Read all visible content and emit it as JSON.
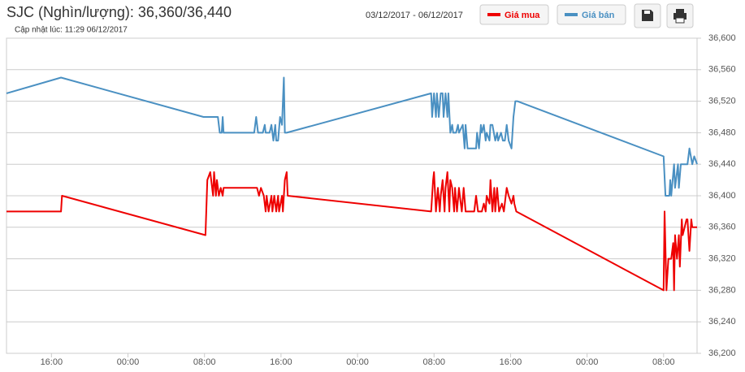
{
  "chart_data": {
    "type": "line",
    "title": "SJC (Nghìn/lượng): 36,360/36,440",
    "subtitle": "Cập nhật lúc: 11:29 06/12/2017",
    "date_range": "03/12/2017 - 06/12/2017",
    "grid": true,
    "xlim": [
      11.3,
      83.5
    ],
    "xticks": [
      {
        "value": 16,
        "label": "16:00"
      },
      {
        "value": 24,
        "label": "00:00"
      },
      {
        "value": 32,
        "label": "08:00"
      },
      {
        "value": 40,
        "label": "16:00"
      },
      {
        "value": 48,
        "label": "00:00"
      },
      {
        "value": 56,
        "label": "08:00"
      },
      {
        "value": 64,
        "label": "16:00"
      },
      {
        "value": 72,
        "label": "00:00"
      },
      {
        "value": 80,
        "label": "08:00"
      }
    ],
    "ylim": [
      36200,
      36600
    ],
    "yticks": [
      {
        "value": 36200,
        "label": "36,200"
      },
      {
        "value": 36240,
        "label": "36,240"
      },
      {
        "value": 36280,
        "label": "36,280"
      },
      {
        "value": 36320,
        "label": "36,320"
      },
      {
        "value": 36360,
        "label": "36,360"
      },
      {
        "value": 36400,
        "label": "36,400"
      },
      {
        "value": 36440,
        "label": "36,440"
      },
      {
        "value": 36480,
        "label": "36,480"
      },
      {
        "value": 36520,
        "label": "36,520"
      },
      {
        "value": 36560,
        "label": "36,560"
      },
      {
        "value": 36600,
        "label": "36,600"
      }
    ],
    "series": [
      {
        "name": "Giá mua",
        "color": "#ee0000",
        "x": [
          11.3,
          17.0,
          17.1,
          32.1,
          32.3,
          32.6,
          32.9,
          33.0,
          33.2,
          33.3,
          33.5,
          33.7,
          33.9,
          34.0,
          37.5,
          37.7,
          37.9,
          38.2,
          38.4,
          38.5,
          38.7,
          39.0,
          39.1,
          39.3,
          39.5,
          39.7,
          39.8,
          40.1,
          40.2,
          40.4,
          40.6,
          40.7,
          55.7,
          55.9,
          56.0,
          56.2,
          56.4,
          56.6,
          56.7,
          56.9,
          57.1,
          57.2,
          57.4,
          57.6,
          57.7,
          57.9,
          58.1,
          58.2,
          58.4,
          58.6,
          58.7,
          58.9,
          59.1,
          59.3,
          60.2,
          60.4,
          60.6,
          61.0,
          61.2,
          61.4,
          61.5,
          61.8,
          61.9,
          62.1,
          62.3,
          62.4,
          62.6,
          62.8,
          63.1,
          63.3,
          63.5,
          63.6,
          63.8,
          64.1,
          64.3,
          64.4,
          64.6,
          80.0,
          80.1,
          80.3,
          80.5,
          80.7,
          80.8,
          81.0,
          81.1,
          81.2,
          81.4,
          81.6,
          81.7,
          81.9,
          82.0,
          82.2,
          82.4,
          82.5,
          82.7,
          82.9,
          83.0,
          83.3,
          83.5
        ],
        "values": [
          36380,
          36380,
          36400,
          36350,
          36420,
          36430,
          36400,
          36430,
          36400,
          36420,
          36400,
          36410,
          36400,
          36410,
          36410,
          36400,
          36410,
          36400,
          36380,
          36400,
          36380,
          36400,
          36380,
          36400,
          36380,
          36400,
          36380,
          36400,
          36380,
          36420,
          36430,
          36400,
          36380,
          36420,
          36430,
          36380,
          36410,
          36380,
          36400,
          36420,
          36380,
          36410,
          36430,
          36380,
          36420,
          36410,
          36380,
          36410,
          36380,
          36410,
          36400,
          36380,
          36410,
          36380,
          36380,
          36400,
          36380,
          36380,
          36390,
          36380,
          36400,
          36390,
          36420,
          36380,
          36410,
          36380,
          36410,
          36380,
          36390,
          36380,
          36400,
          36410,
          36400,
          36390,
          36400,
          36390,
          36380,
          36280,
          36380,
          36280,
          36320,
          36320,
          36320,
          36340,
          36280,
          36350,
          36320,
          36350,
          36310,
          36370,
          36350,
          36360,
          36370,
          36370,
          36330,
          36370,
          36360,
          36360,
          36360
        ]
      },
      {
        "name": "Giá bán",
        "color": "#4a90c2",
        "x": [
          11.3,
          17.0,
          31.9,
          33.4,
          33.6,
          33.8,
          33.9,
          34.0,
          37.2,
          37.4,
          37.6,
          38.1,
          38.3,
          38.4,
          38.8,
          39.0,
          39.2,
          39.4,
          39.5,
          39.7,
          39.9,
          40.1,
          40.3,
          40.4,
          40.6,
          55.7,
          55.8,
          56.0,
          56.2,
          56.3,
          56.5,
          56.7,
          56.9,
          57.0,
          57.2,
          57.4,
          57.5,
          57.7,
          57.9,
          58.0,
          58.3,
          58.5,
          58.6,
          59.0,
          59.2,
          59.3,
          59.5,
          60.4,
          60.5,
          60.7,
          60.9,
          61.0,
          61.2,
          61.4,
          61.5,
          61.8,
          61.9,
          62.1,
          62.4,
          62.6,
          62.7,
          63.0,
          63.2,
          63.4,
          63.6,
          63.8,
          64.1,
          64.3,
          64.5,
          64.7,
          80.0,
          80.2,
          80.4,
          80.6,
          80.7,
          80.8,
          81.1,
          81.2,
          81.5,
          81.6,
          81.8,
          82.0,
          82.5,
          82.7,
          83.0,
          83.2,
          83.5
        ],
        "values": [
          36530,
          36550,
          36500,
          36500,
          36480,
          36480,
          36500,
          36480,
          36480,
          36500,
          36480,
          36480,
          36490,
          36480,
          36480,
          36490,
          36470,
          36490,
          36470,
          36470,
          36500,
          36490,
          36550,
          36480,
          36480,
          36530,
          36500,
          36530,
          36500,
          36530,
          36500,
          36530,
          36530,
          36500,
          36530,
          36500,
          36530,
          36480,
          36490,
          36480,
          36480,
          36490,
          36480,
          36490,
          36460,
          36490,
          36460,
          36460,
          36480,
          36460,
          36490,
          36480,
          36490,
          36470,
          36480,
          36470,
          36490,
          36490,
          36470,
          36480,
          36470,
          36480,
          36470,
          36470,
          36490,
          36470,
          36460,
          36500,
          36520,
          36520,
          36450,
          36400,
          36400,
          36400,
          36420,
          36400,
          36440,
          36410,
          36440,
          36410,
          36440,
          36440,
          36440,
          36460,
          36440,
          36450,
          36440
        ]
      }
    ]
  }
}
